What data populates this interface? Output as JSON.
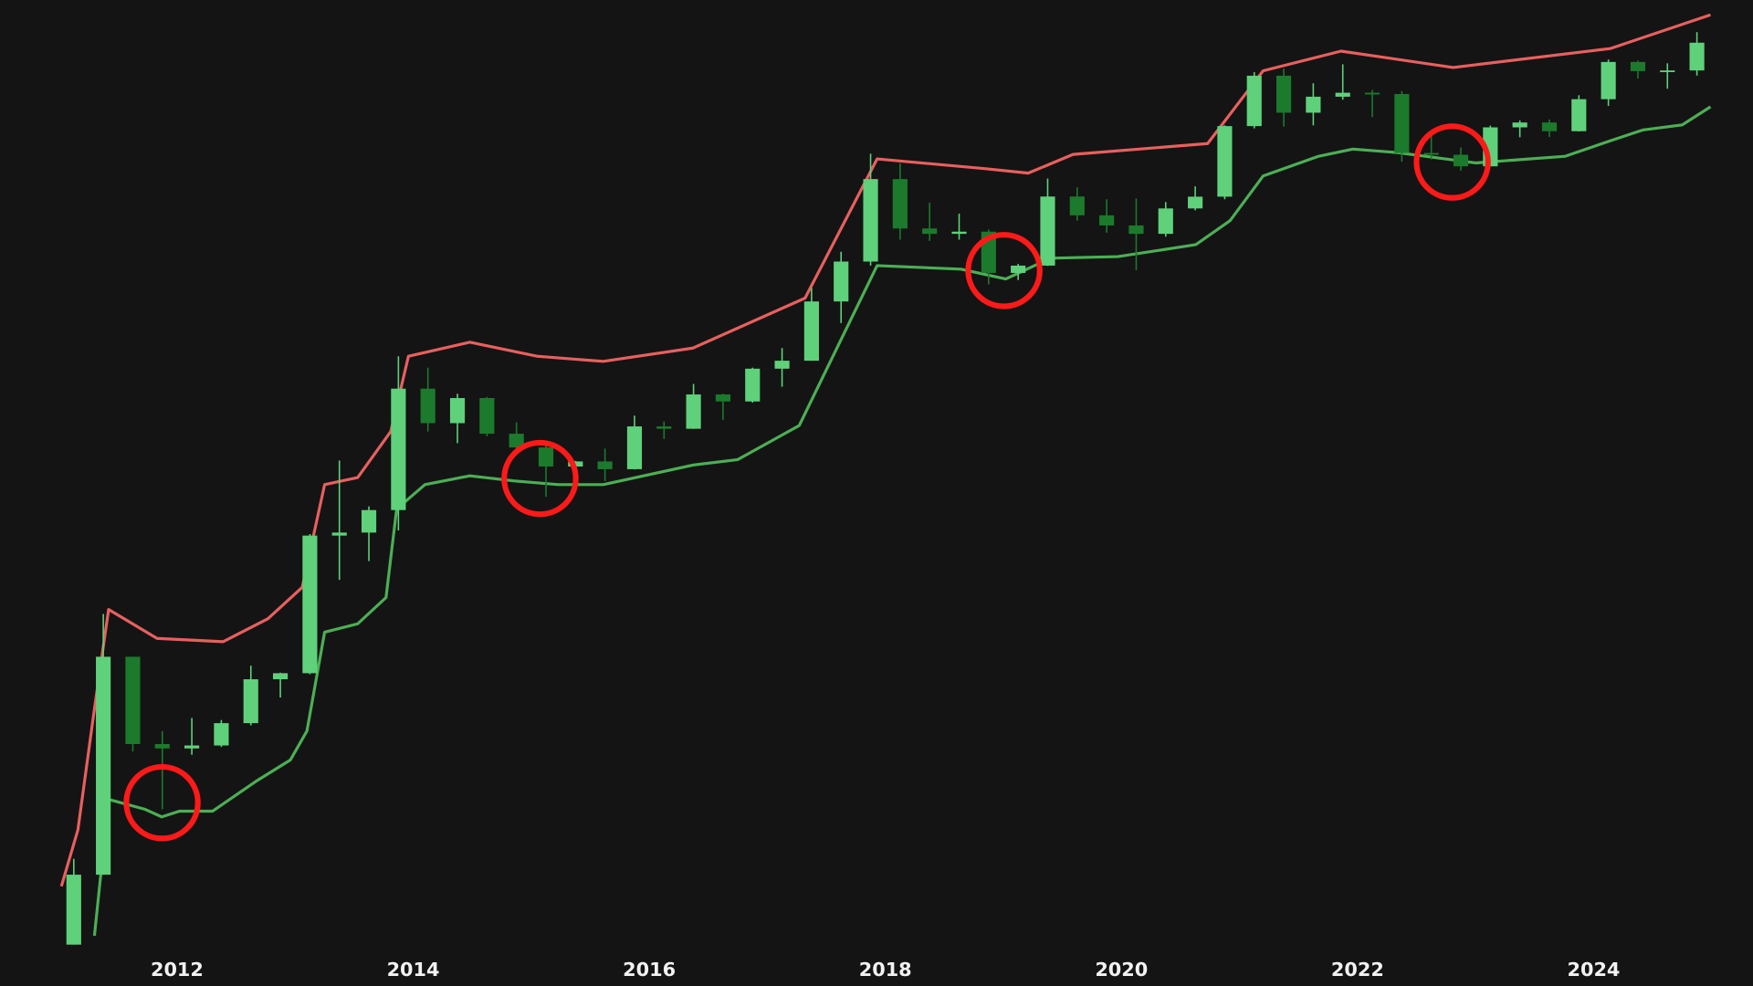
{
  "chart_data": {
    "type": "candlestick",
    "ylog": true,
    "xlim": [
      2010.5,
      2025.35
    ],
    "ylim": [
      0.3,
      170000
    ],
    "xticks": [
      2012,
      2014,
      2016,
      2018,
      2020,
      2022,
      2024
    ],
    "up_color": "#5fd17a",
    "down_color": "#1c7a2c",
    "candles": {
      "x": [
        2011.125,
        2011.375,
        2011.625,
        2011.875,
        2012.125,
        2012.375,
        2012.625,
        2012.875,
        2013.125,
        2013.375,
        2013.625,
        2013.875,
        2014.125,
        2014.375,
        2014.625,
        2014.875,
        2015.125,
        2015.375,
        2015.625,
        2015.875,
        2016.125,
        2016.375,
        2016.625,
        2016.875,
        2017.125,
        2017.375,
        2017.625,
        2017.875,
        2018.125,
        2018.375,
        2018.625,
        2018.875,
        2019.125,
        2019.375,
        2019.625,
        2019.875,
        2020.125,
        2020.375,
        2020.625,
        2020.875,
        2021.125,
        2021.375,
        2021.625,
        2021.875,
        2022.125,
        2022.375,
        2022.625,
        2022.875,
        2023.125,
        2023.375,
        2023.625,
        2023.875,
        2024.125,
        2024.375,
        2024.625,
        2024.875
      ],
      "open": [
        0.3,
        0.8,
        17,
        5,
        4.7,
        4.9,
        6.7,
        12.4,
        13.5,
        93,
        97,
        133,
        730,
        450,
        640,
        388,
        320,
        245,
        263,
        236,
        430,
        416,
        673,
        610,
        966,
        1080,
        2480,
        4340,
        13800,
        6900,
        6400,
        6600,
        3700,
        4100,
        10800,
        8300,
        7200,
        6400,
        9140,
        10780,
        29000,
        58800,
        35000,
        43800,
        46300,
        45500,
        19900,
        19400,
        16500,
        28500,
        30500,
        27000,
        42300,
        71300,
        62700,
        63300
      ],
      "high": [
        1,
        31,
        17,
        6,
        7.2,
        7,
        15,
        13.6,
        95,
        266,
        140,
        1150,
        980,
        680,
        650,
        455,
        330,
        265,
        315,
        500,
        460,
        780,
        680,
        980,
        1290,
        3000,
        4980,
        19700,
        17200,
        9900,
        8500,
        6800,
        4200,
        13900,
        12300,
        10400,
        10500,
        10000,
        12450,
        29300,
        61800,
        64900,
        52900,
        69000,
        48200,
        47400,
        25200,
        21500,
        29200,
        31400,
        31800,
        44700,
        73800,
        72800,
        70000,
        108300
      ],
      "low": [
        0.3,
        0.8,
        4.5,
        2,
        4.3,
        4.8,
        6.5,
        9.6,
        13.3,
        50,
        65,
        100,
        400,
        340,
        375,
        300,
        160,
        200,
        200,
        235,
        360,
        415,
        470,
        600,
        750,
        1080,
        1830,
        4100,
        5900,
        5800,
        5900,
        3150,
        3350,
        4080,
        7700,
        6500,
        3850,
        6150,
        8900,
        10400,
        28100,
        28800,
        29300,
        42000,
        32900,
        17600,
        18200,
        15500,
        16500,
        24800,
        24900,
        26900,
        38500,
        56500,
        49000,
        58900
      ],
      "close": [
        0.8,
        17,
        5,
        4.7,
        4.9,
        6.7,
        12.4,
        13.5,
        93,
        97,
        133,
        730,
        450,
        640,
        388,
        320,
        245,
        263,
        236,
        430,
        416,
        673,
        610,
        966,
        1080,
        2480,
        4340,
        13800,
        6900,
        6400,
        6600,
        3700,
        4100,
        10800,
        8300,
        7200,
        6400,
        9140,
        10780,
        29000,
        58800,
        35000,
        43800,
        46300,
        45500,
        19900,
        19400,
        16500,
        28500,
        30500,
        27000,
        42300,
        71300,
        62700,
        63300,
        93400
      ]
    },
    "series": [
      {
        "color": "#e8605f",
        "x": [
          2011.02,
          2011.16,
          2011.3,
          2011.42,
          2011.83,
          2012.39,
          2012.77,
          2013.06,
          2013.25,
          2013.53,
          2013.81,
          2013.96,
          2014.48,
          2015.05,
          2015.61,
          2016.37,
          2017.32,
          2017.93,
          2018.83,
          2019.21,
          2019.59,
          2020.73,
          2021.2,
          2021.86,
          2022.81,
          2024.14,
          2024.99
        ],
        "values": [
          0.68,
          1.5,
          8.2,
          33,
          22,
          21,
          29,
          45,
          190,
          210,
          400,
          1150,
          1400,
          1150,
          1070,
          1290,
          2600,
          18300,
          16000,
          15000,
          19500,
          22700,
          63000,
          83000,
          66000,
          86000,
          138000
        ]
      },
      {
        "color": "#4caf55",
        "x": [
          2011.3,
          2011.42,
          2011.73,
          2011.87,
          2012.02,
          2012.3,
          2012.68,
          2012.96,
          2013.1,
          2013.25,
          2013.53,
          2013.77,
          2013.86,
          2014.1,
          2014.48,
          2014.86,
          2015.23,
          2015.61,
          2016.37,
          2016.75,
          2017.27,
          2017.93,
          2018.64,
          2019.02,
          2019.4,
          2019.97,
          2020.63,
          2020.92,
          2021.2,
          2021.67,
          2021.96,
          2022.34,
          2023.0,
          2023.76,
          2024.14,
          2024.42,
          2024.75,
          2024.99
        ],
        "values": [
          0.34,
          2.3,
          2.0,
          1.8,
          1.95,
          1.95,
          3.0,
          4.0,
          6.0,
          24,
          27,
          39,
          135,
          190,
          215,
          200,
          190,
          190,
          250,
          270,
          435,
          4100,
          3900,
          3400,
          4550,
          4650,
          5500,
          7700,
          14400,
          19000,
          21000,
          20000,
          17300,
          19000,
          23600,
          27500,
          29500,
          38000
        ]
      }
    ]
  }
}
